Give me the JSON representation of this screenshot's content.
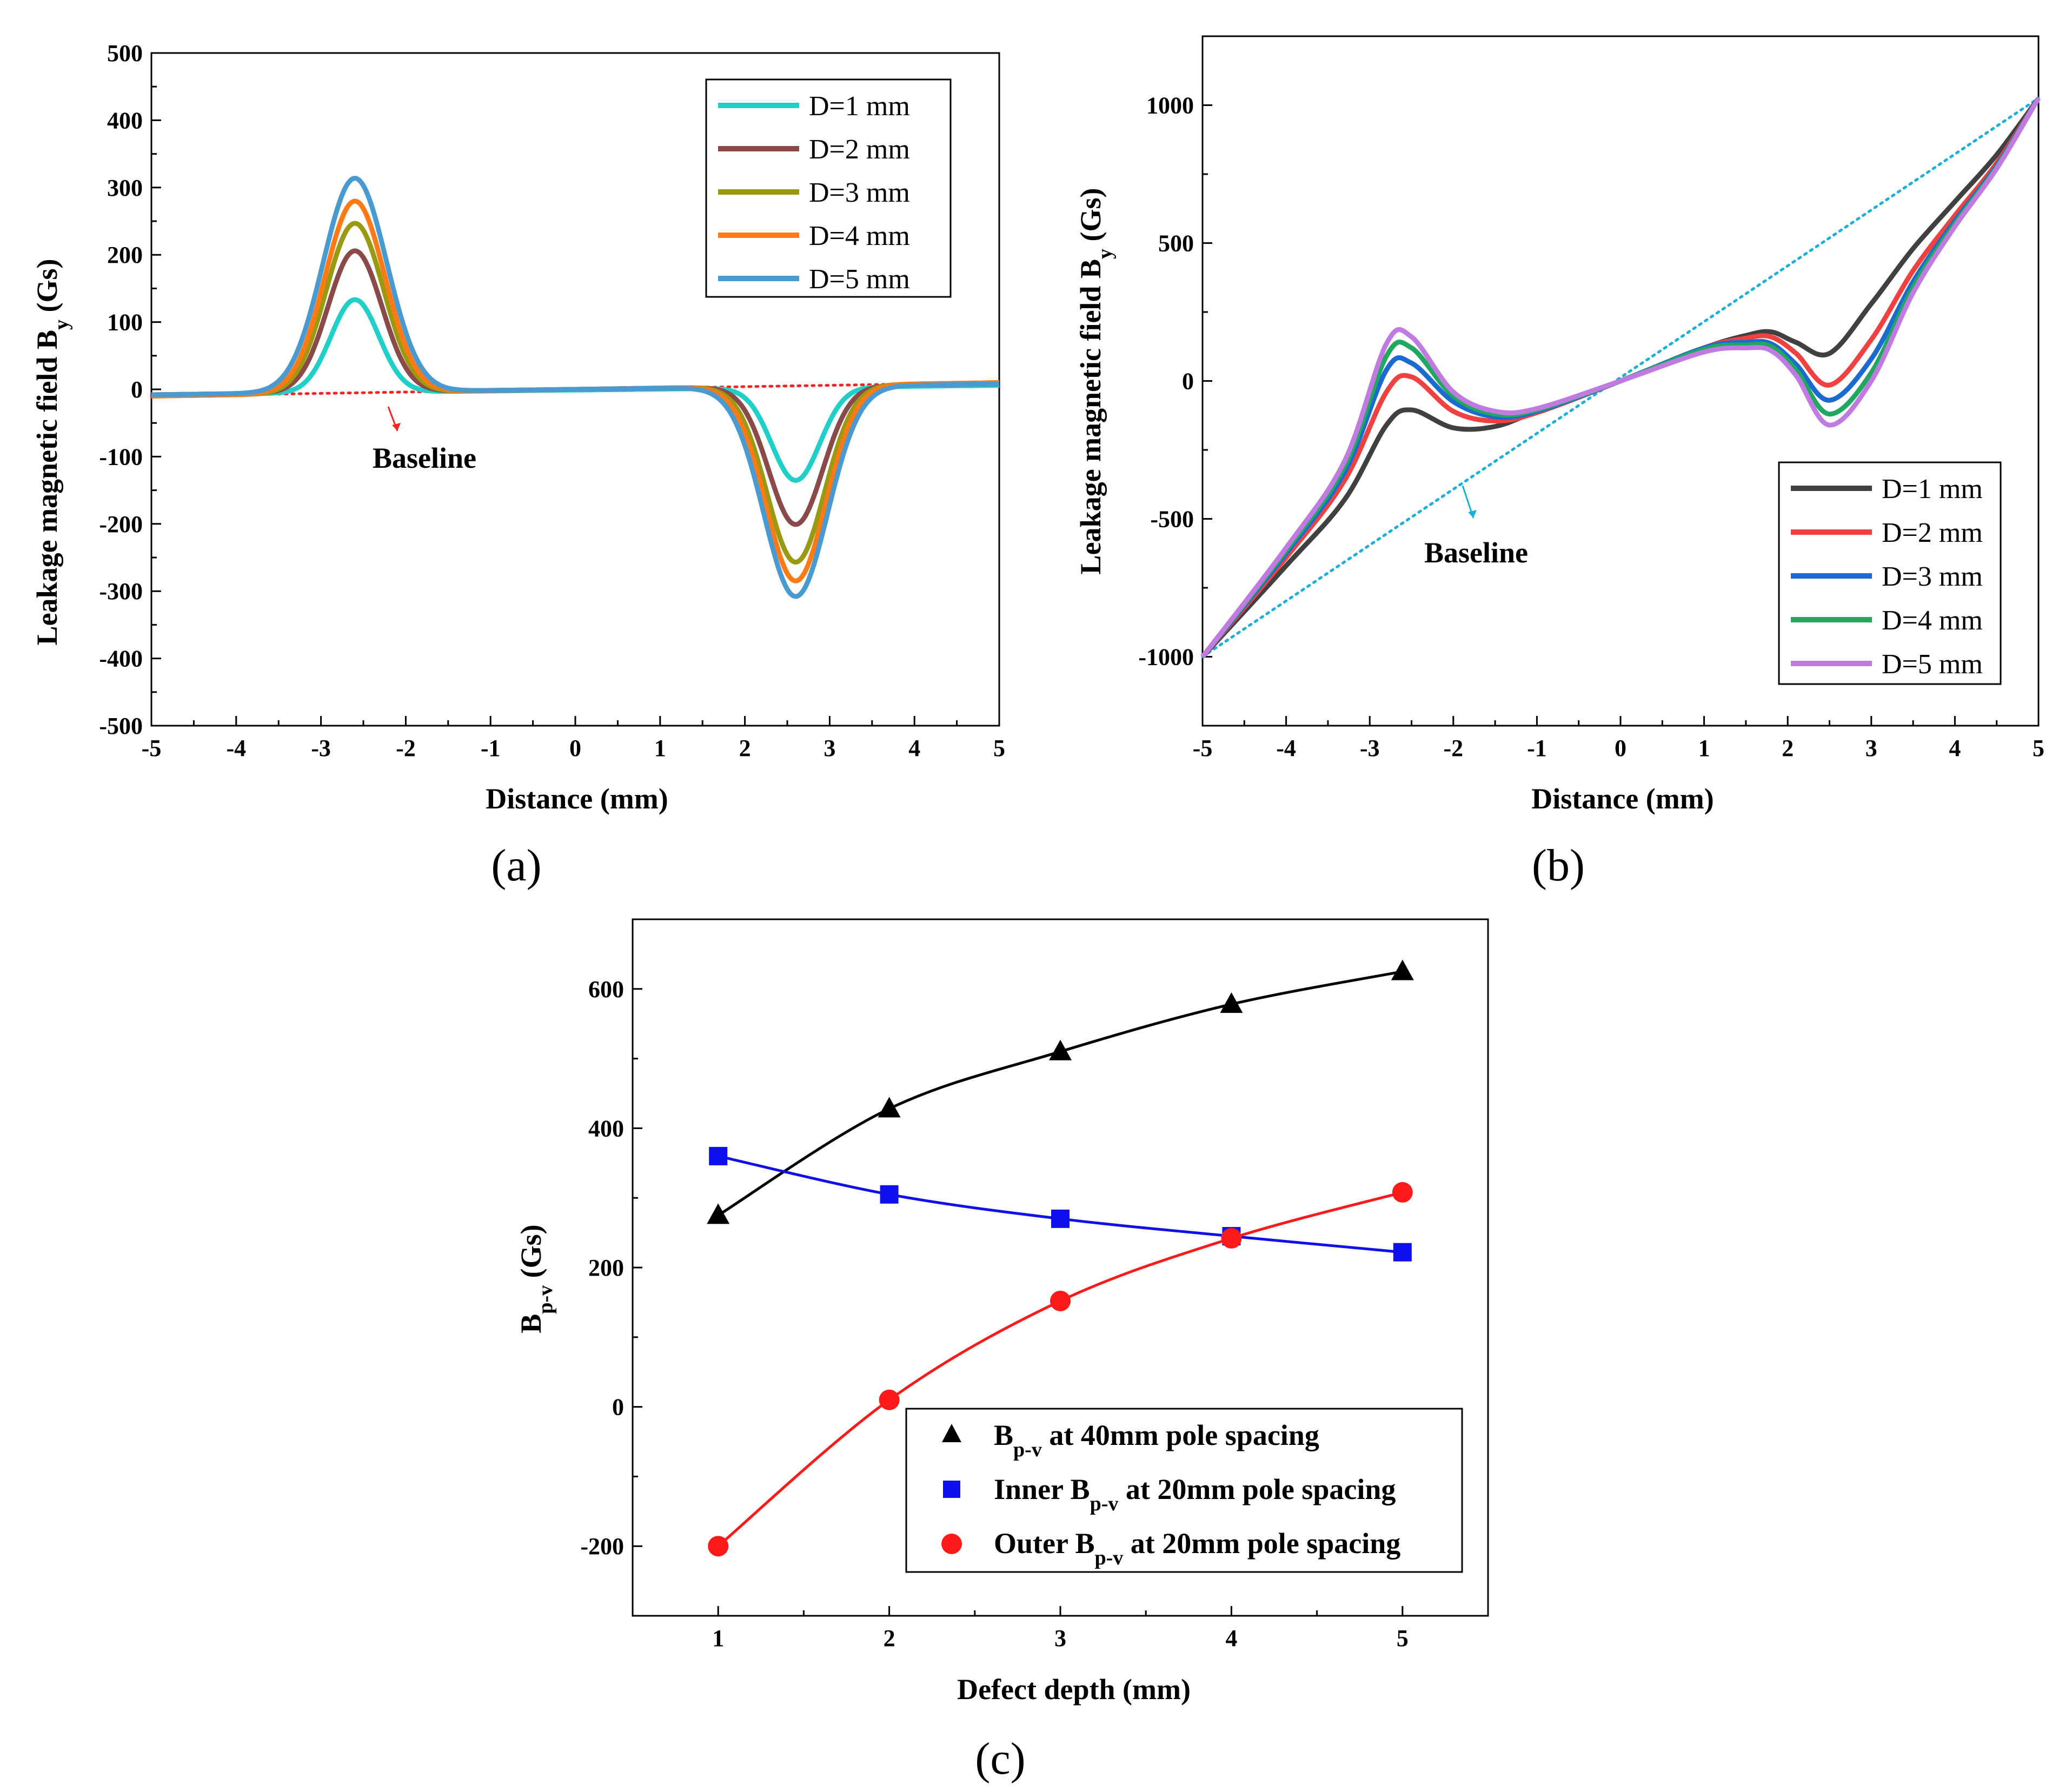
{
  "chart_data": [
    {
      "panel": "(a)",
      "type": "line",
      "xlabel": "Distance (mm)",
      "ylabel_main": "Leakage magnetic field B",
      "ylabel_sub": "y",
      "ylabel_unit": " (Gs)",
      "xlim": [
        -5,
        5
      ],
      "ylim": [
        -500,
        500
      ],
      "xticks": [
        -5,
        -4,
        -3,
        -2,
        -1,
        0,
        1,
        2,
        3,
        4,
        5
      ],
      "yticks": [
        -500,
        -400,
        -300,
        -200,
        -100,
        0,
        100,
        200,
        300,
        400,
        500
      ],
      "legend_position": "top-right",
      "annotation": "Baseline",
      "baseline": {
        "name": "Baseline",
        "color": "#ff2020",
        "x": [
          -5,
          5
        ],
        "y": [
          -10,
          10
        ]
      },
      "series": [
        {
          "name": "D=1 mm",
          "color": "#20d0c8",
          "peak_x": -2.6,
          "peak": 138,
          "valley_x": 2.6,
          "valley": -138,
          "w_peak": 0.4,
          "w_valley": 0.4,
          "base_start": -8,
          "base_end": 6,
          "x": [
            -5,
            -4,
            -3,
            -2.6,
            -2,
            -1,
            0,
            1,
            2,
            2.6,
            3,
            4,
            5
          ],
          "y": [
            -8,
            0,
            60,
            138,
            30,
            4,
            0,
            -2,
            -25,
            -138,
            -75,
            0,
            6
          ]
        },
        {
          "name": "D=2 mm",
          "color": "#8b4a4a",
          "peak_x": -2.6,
          "peak": 210,
          "valley_x": 2.6,
          "valley": -205,
          "w_peak": 0.45,
          "w_valley": 0.45,
          "base_start": -8,
          "base_end": 8,
          "x": [
            -5,
            -4,
            -3,
            -2.6,
            -2,
            -1,
            0,
            1,
            2,
            2.6,
            3,
            4,
            5
          ],
          "y": [
            -8,
            5,
            120,
            210,
            70,
            6,
            0,
            -3,
            -60,
            -205,
            -120,
            -15,
            8
          ]
        },
        {
          "name": "D=3 mm",
          "color": "#9a9a10",
          "peak_x": -2.6,
          "peak": 252,
          "valley_x": 2.6,
          "valley": -262,
          "w_peak": 0.48,
          "w_valley": 0.48,
          "base_start": -10,
          "base_end": 10,
          "x": [
            -5,
            -4,
            -3,
            -2.6,
            -2,
            -1,
            0,
            1,
            2,
            2.6,
            3,
            4,
            5
          ],
          "y": [
            -10,
            15,
            160,
            252,
            90,
            8,
            0,
            -4,
            -85,
            -262,
            -160,
            -25,
            10
          ]
        },
        {
          "name": "D=4 mm",
          "color": "#ff7a14",
          "peak_x": -2.6,
          "peak": 285,
          "valley_x": 2.6,
          "valley": -290,
          "w_peak": 0.5,
          "w_valley": 0.5,
          "base_start": -10,
          "base_end": 10,
          "x": [
            -5,
            -4,
            -3,
            -2.6,
            -2,
            -1,
            0,
            1,
            2,
            2.6,
            3,
            4,
            5
          ],
          "y": [
            -10,
            25,
            190,
            285,
            110,
            10,
            0,
            -5,
            -100,
            -290,
            -185,
            -35,
            10
          ]
        },
        {
          "name": "D=5 mm",
          "color": "#4a9ad2",
          "peak_x": -2.6,
          "peak": 318,
          "valley_x": 2.6,
          "valley": -312,
          "w_peak": 0.53,
          "w_valley": 0.53,
          "base_start": -8,
          "base_end": 8,
          "x": [
            -5,
            -4,
            -3,
            -2.6,
            -2,
            -1,
            0,
            1,
            2,
            2.6,
            3,
            4,
            5
          ],
          "y": [
            -8,
            40,
            220,
            318,
            130,
            12,
            0,
            -6,
            -115,
            -312,
            -210,
            -45,
            8
          ]
        }
      ]
    },
    {
      "panel": "(b)",
      "type": "line",
      "xlabel": "Distance (mm)",
      "ylabel_main": "Leakage magnetic field B",
      "ylabel_sub": "y",
      "ylabel_unit": " (Gs)",
      "xlim": [
        -5,
        5
      ],
      "ylim": [
        -1250,
        1250
      ],
      "xticks": [
        -5,
        -4,
        -3,
        -2,
        -1,
        0,
        1,
        2,
        3,
        4,
        5
      ],
      "yticks": [
        -1000,
        -500,
        0,
        500,
        1000
      ],
      "legend_position": "bottom-right",
      "annotation": "Baseline",
      "baseline": {
        "name": "Baseline",
        "color": "#1ab0d8",
        "x": [
          -5,
          5
        ],
        "y": [
          -1000,
          1025
        ]
      },
      "series": [
        {
          "name": "D=1 mm",
          "color": "#404040",
          "x": [
            -5,
            -4,
            -3.3,
            -2.8,
            -2.5,
            -2.0,
            -1.5,
            -1.0,
            0,
            1.0,
            1.5,
            1.8,
            2.1,
            2.5,
            3.0,
            3.5,
            4.0,
            4.5,
            5
          ],
          "y": [
            -1000,
            -670,
            -430,
            -160,
            -105,
            -170,
            -165,
            -110,
            0,
            120,
            165,
            178,
            140,
            100,
            280,
            480,
            650,
            820,
            1025
          ]
        },
        {
          "name": "D=2 mm",
          "color": "#f04040",
          "x": [
            -5,
            -4,
            -3.3,
            -2.8,
            -2.5,
            -2.0,
            -1.5,
            -1.0,
            0,
            1.0,
            1.5,
            1.8,
            2.1,
            2.5,
            3.0,
            3.5,
            4.0,
            4.5,
            5
          ],
          "y": [
            -1000,
            -640,
            -360,
            -40,
            15,
            -110,
            -145,
            -115,
            0,
            120,
            155,
            160,
            100,
            -15,
            150,
            400,
            600,
            790,
            1025
          ]
        },
        {
          "name": "D=3 mm",
          "color": "#1a6ad2",
          "x": [
            -5,
            -4,
            -3.3,
            -2.8,
            -2.5,
            -2.0,
            -1.5,
            -1.0,
            0,
            1.0,
            1.5,
            1.8,
            2.1,
            2.5,
            3.0,
            3.5,
            4.0,
            4.5,
            5
          ],
          "y": [
            -1000,
            -625,
            -330,
            40,
            65,
            -75,
            -130,
            -110,
            0,
            120,
            140,
            135,
            60,
            -70,
            80,
            360,
            580,
            780,
            1025
          ]
        },
        {
          "name": "D=4 mm",
          "color": "#20a860",
          "x": [
            -5,
            -4,
            -3.3,
            -2.8,
            -2.5,
            -2.0,
            -1.5,
            -1.0,
            0,
            1.0,
            1.5,
            1.8,
            2.1,
            2.5,
            3.0,
            3.5,
            4.0,
            4.5,
            5
          ],
          "y": [
            -1000,
            -615,
            -310,
            90,
            120,
            -55,
            -120,
            -105,
            0,
            115,
            130,
            125,
            40,
            -120,
            30,
            340,
            570,
            775,
            1025
          ]
        },
        {
          "name": "D=5 mm",
          "color": "#c07ae0",
          "x": [
            -5,
            -4,
            -3.3,
            -2.8,
            -2.5,
            -2.0,
            -1.5,
            -1.0,
            0,
            1.0,
            1.5,
            1.8,
            2.1,
            2.5,
            3.0,
            3.5,
            4.0,
            4.5,
            5
          ],
          "y": [
            -1000,
            -605,
            -290,
            135,
            160,
            -40,
            -110,
            -100,
            0,
            105,
            120,
            110,
            20,
            -160,
            0,
            320,
            560,
            770,
            1025
          ]
        }
      ]
    },
    {
      "panel": "(c)",
      "type": "scatter",
      "xlabel": "Defect depth (mm)",
      "ylabel_main": "B",
      "ylabel_sub": "p-v",
      "ylabel_unit": " (Gs)",
      "xlim": [
        0.5,
        5.5
      ],
      "ylim": [
        -300,
        700
      ],
      "xticks": [
        1,
        2,
        3,
        4,
        5
      ],
      "yticks": [
        -200,
        0,
        200,
        400,
        600
      ],
      "legend_position": "bottom-right",
      "x": [
        1,
        2,
        3,
        4,
        5
      ],
      "series": [
        {
          "name_main": "B",
          "name_sub": "p-v",
          "name_rest": " at 40mm pole spacing",
          "marker": "triangle",
          "color": "#000000",
          "values": [
            275,
            428,
            510,
            578,
            625
          ]
        },
        {
          "name_main": "Inner B",
          "name_sub": "p-v",
          "name_rest": " at 20mm pole spacing",
          "marker": "square",
          "color": "#1010ee",
          "values": [
            360,
            305,
            270,
            245,
            222
          ]
        },
        {
          "name_main": "Outer B",
          "name_sub": "p-v",
          "name_rest": " at 20mm pole spacing",
          "marker": "circle",
          "color": "#ff1a1a",
          "values": [
            -200,
            10,
            152,
            242,
            308
          ]
        }
      ]
    }
  ]
}
